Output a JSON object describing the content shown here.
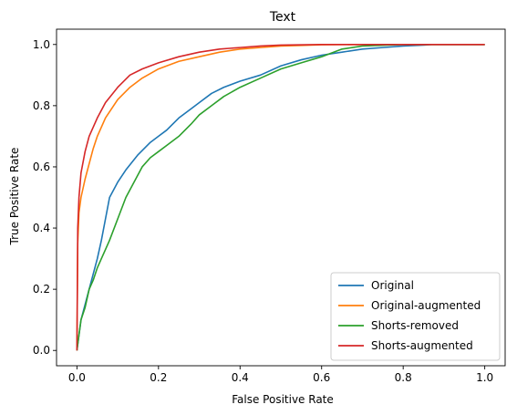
{
  "chart_data": {
    "type": "line",
    "title": "Text",
    "xlabel": "False Positive Rate",
    "ylabel": "True Positive Rate",
    "xlim": [
      -0.05,
      1.05
    ],
    "ylim": [
      -0.05,
      1.05
    ],
    "xticks": [
      "0.0",
      "0.2",
      "0.4",
      "0.6",
      "0.8",
      "1.0"
    ],
    "yticks": [
      "0.0",
      "0.2",
      "0.4",
      "0.6",
      "0.8",
      "1.0"
    ],
    "grid": false,
    "legend": "bottom-right",
    "series": [
      {
        "name": "Original",
        "color": "#1f77b4",
        "x": [
          0,
          0.005,
          0.01,
          0.02,
          0.03,
          0.04,
          0.05,
          0.06,
          0.07,
          0.08,
          0.1,
          0.12,
          0.15,
          0.18,
          0.2,
          0.22,
          0.25,
          0.28,
          0.3,
          0.33,
          0.36,
          0.4,
          0.45,
          0.5,
          0.55,
          0.6,
          0.65,
          0.7,
          0.75,
          0.8,
          0.85,
          0.87,
          0.9,
          1.0
        ],
        "y": [
          0,
          0.05,
          0.1,
          0.15,
          0.2,
          0.25,
          0.3,
          0.36,
          0.43,
          0.5,
          0.55,
          0.59,
          0.64,
          0.68,
          0.7,
          0.72,
          0.76,
          0.79,
          0.81,
          0.84,
          0.86,
          0.88,
          0.9,
          0.93,
          0.95,
          0.965,
          0.975,
          0.985,
          0.99,
          0.995,
          0.998,
          1.0,
          1.0,
          1.0
        ]
      },
      {
        "name": "Original-augmented",
        "color": "#ff7f0e",
        "x": [
          0,
          0.002,
          0.005,
          0.01,
          0.02,
          0.03,
          0.04,
          0.05,
          0.07,
          0.1,
          0.13,
          0.16,
          0.2,
          0.25,
          0.3,
          0.35,
          0.4,
          0.45,
          0.5,
          0.55,
          0.6,
          0.7,
          0.8,
          1.0
        ],
        "y": [
          0,
          0.35,
          0.45,
          0.5,
          0.56,
          0.61,
          0.66,
          0.7,
          0.76,
          0.82,
          0.86,
          0.89,
          0.92,
          0.945,
          0.96,
          0.975,
          0.985,
          0.99,
          0.995,
          0.997,
          0.999,
          1.0,
          1.0,
          1.0
        ]
      },
      {
        "name": "Shorts-removed",
        "color": "#2ca02c",
        "x": [
          0,
          0.005,
          0.01,
          0.02,
          0.03,
          0.04,
          0.05,
          0.06,
          0.07,
          0.08,
          0.1,
          0.12,
          0.14,
          0.16,
          0.18,
          0.2,
          0.22,
          0.25,
          0.28,
          0.3,
          0.33,
          0.36,
          0.4,
          0.45,
          0.5,
          0.55,
          0.6,
          0.65,
          0.7,
          0.8,
          1.0
        ],
        "y": [
          0,
          0.05,
          0.1,
          0.14,
          0.2,
          0.23,
          0.27,
          0.3,
          0.33,
          0.36,
          0.43,
          0.5,
          0.55,
          0.6,
          0.63,
          0.65,
          0.67,
          0.7,
          0.74,
          0.77,
          0.8,
          0.83,
          0.86,
          0.89,
          0.92,
          0.94,
          0.96,
          0.985,
          0.995,
          1.0,
          1.0
        ]
      },
      {
        "name": "Shorts-augmented",
        "color": "#d62728",
        "x": [
          0,
          0.002,
          0.005,
          0.01,
          0.02,
          0.03,
          0.05,
          0.07,
          0.1,
          0.13,
          0.16,
          0.2,
          0.25,
          0.3,
          0.35,
          0.4,
          0.45,
          0.5,
          0.6,
          0.7,
          1.0
        ],
        "y": [
          0,
          0.4,
          0.5,
          0.58,
          0.65,
          0.7,
          0.76,
          0.81,
          0.86,
          0.9,
          0.92,
          0.94,
          0.96,
          0.975,
          0.985,
          0.99,
          0.995,
          0.998,
          1.0,
          1.0,
          1.0
        ]
      }
    ]
  }
}
